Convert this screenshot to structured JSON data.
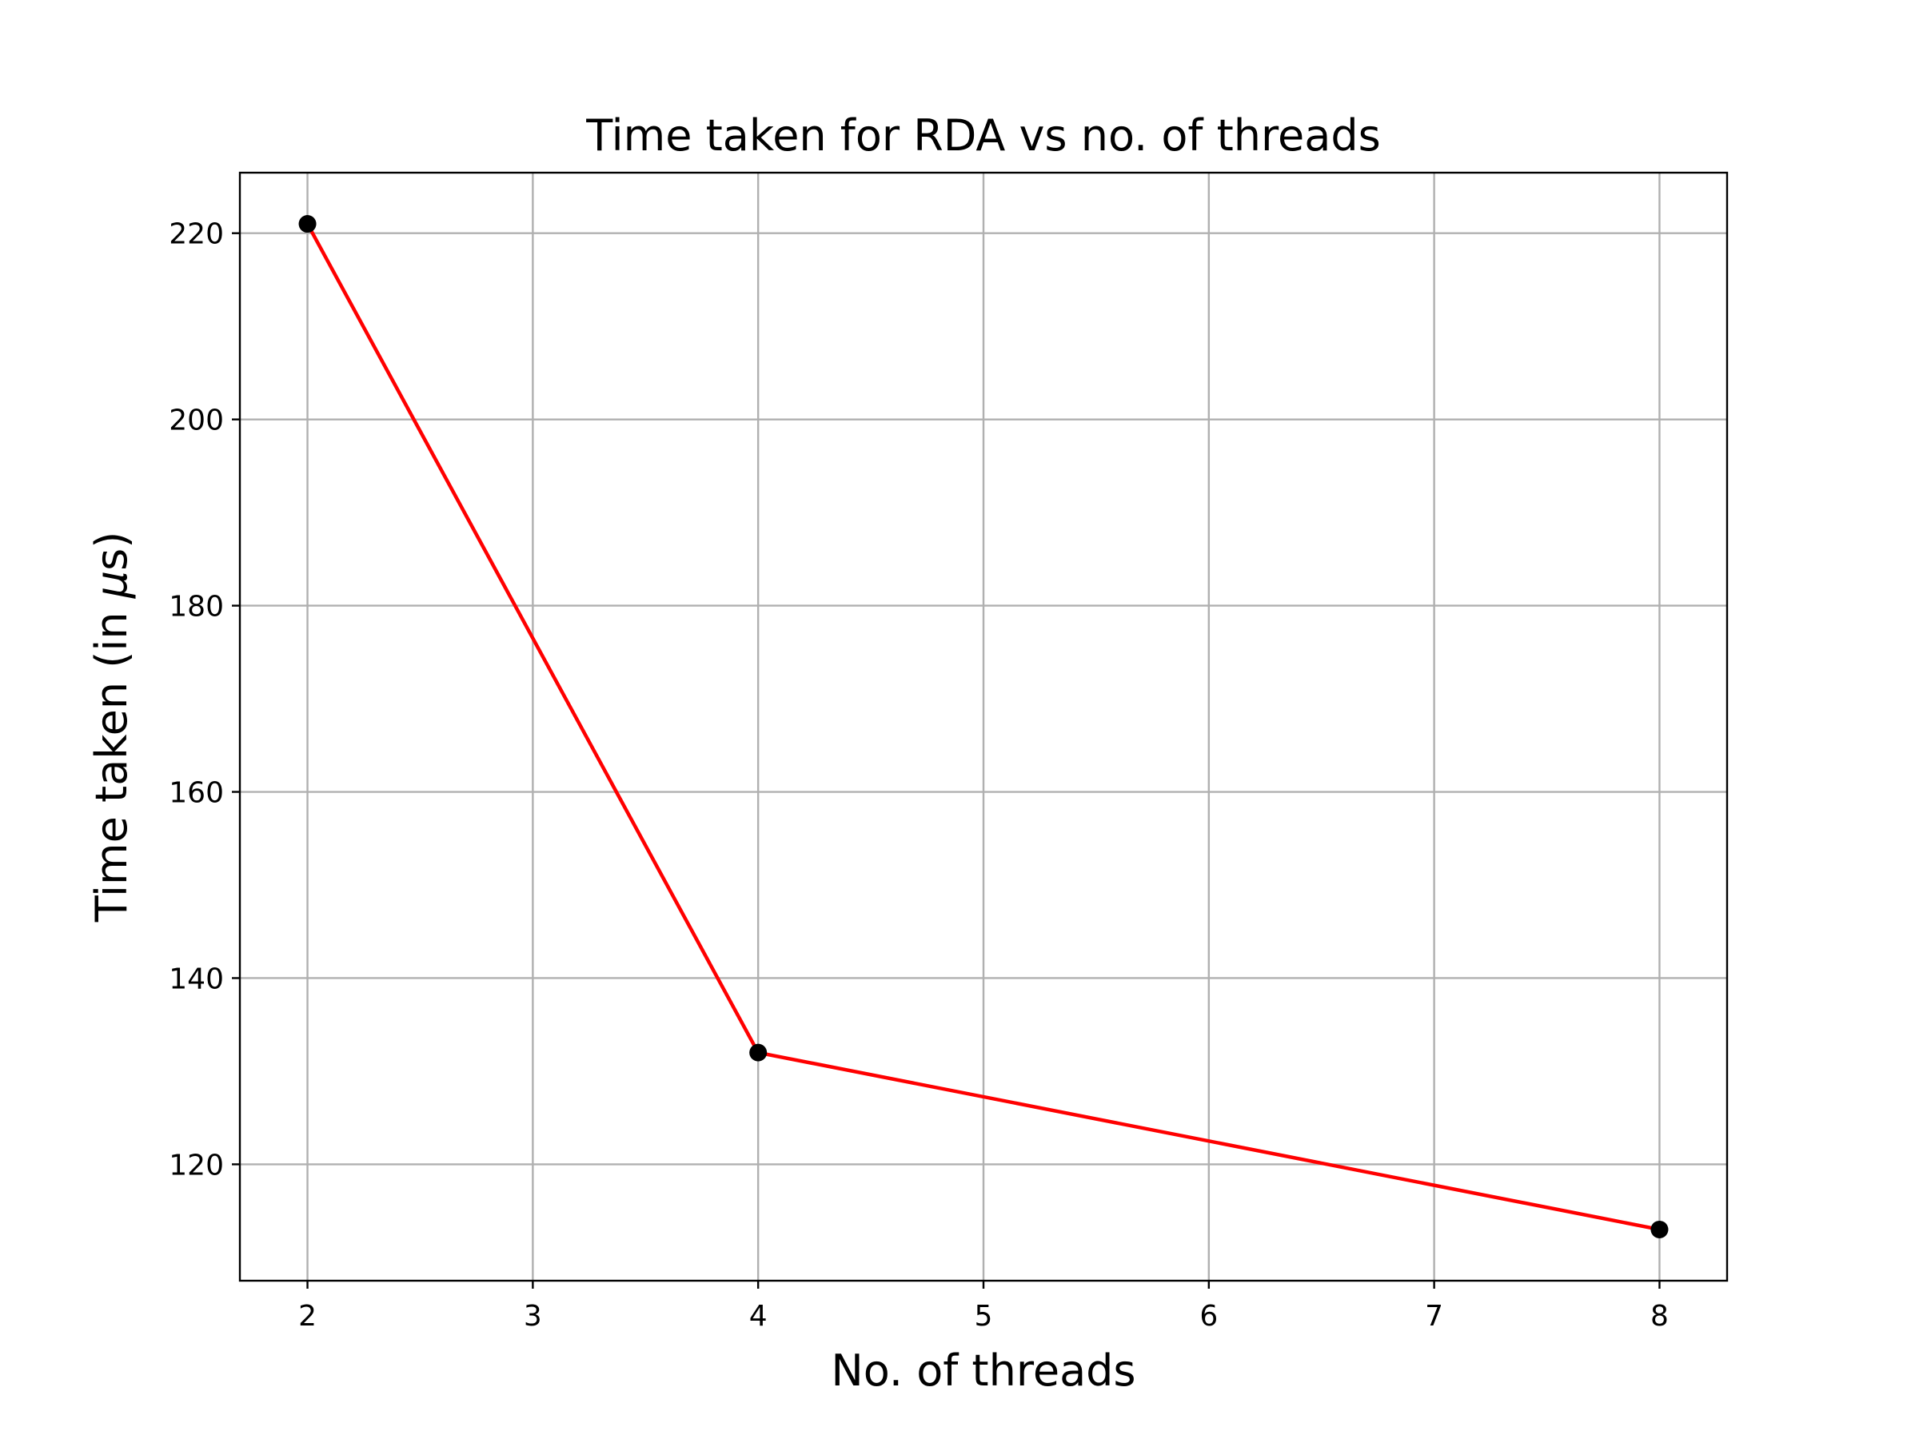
{
  "chart_data": {
    "type": "line",
    "title": "Time taken for RDA vs no. of threads",
    "xlabel": "No. of threads",
    "ylabel_prefix": "Time taken (in ",
    "ylabel_mu": "μ",
    "ylabel_suffix": "s)",
    "x": [
      2,
      4,
      8
    ],
    "series": [
      {
        "values": [
          221,
          132,
          113
        ]
      }
    ],
    "xlim": [
      1.7,
      8.3
    ],
    "ylim": [
      107.5,
      226.5
    ],
    "xticks": [
      2,
      3,
      4,
      5,
      6,
      7,
      8
    ],
    "yticks": [
      120,
      140,
      160,
      180,
      200,
      220
    ],
    "grid": true,
    "line_color": "#ff0000",
    "marker_color": "#000000"
  }
}
